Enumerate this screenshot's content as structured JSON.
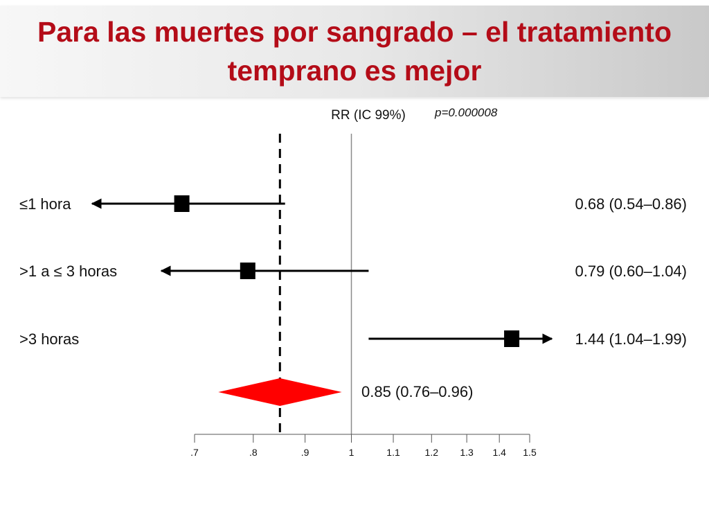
{
  "slide": {
    "title": "Para las muertes por sangrado – el tratamiento temprano es mejor"
  },
  "chart_data": {
    "type": "forest",
    "header_label": "RR (IC 99%)",
    "p_value_label": "p=0.000008",
    "reference_line": 1,
    "x_scale": "log",
    "xlim": [
      0.7,
      1.5
    ],
    "x_ticks": [
      {
        "value": 0.7,
        "label": ".7"
      },
      {
        "value": 0.8,
        "label": ".8"
      },
      {
        "value": 0.9,
        "label": ".9"
      },
      {
        "value": 1.0,
        "label": "1"
      },
      {
        "value": 1.1,
        "label": "1.1"
      },
      {
        "value": 1.2,
        "label": "1.2"
      },
      {
        "value": 1.3,
        "label": "1.3"
      },
      {
        "value": 1.4,
        "label": "1.4"
      },
      {
        "value": 1.5,
        "label": "1.5"
      }
    ],
    "rows": [
      {
        "label": "≤1 hora",
        "rr": 0.68,
        "lower": 0.54,
        "upper": 0.86,
        "text": "0.68 (0.54–0.86)"
      },
      {
        "label": ">1 a ≤ 3 horas",
        "rr": 0.79,
        "lower": 0.6,
        "upper": 1.04,
        "text": "0.79 (0.60–1.04)"
      },
      {
        "label": ">3 horas",
        "rr": 1.44,
        "lower": 1.04,
        "upper": 1.99,
        "text": "1.44 (1.04–1.99)"
      }
    ],
    "overall": {
      "rr": 0.85,
      "lower": 0.76,
      "upper": 0.96,
      "text": "0.85 (0.76–0.96)"
    },
    "colors": {
      "title": "#b40c18",
      "diamond": "#ff0000",
      "marker": "#000000"
    }
  }
}
